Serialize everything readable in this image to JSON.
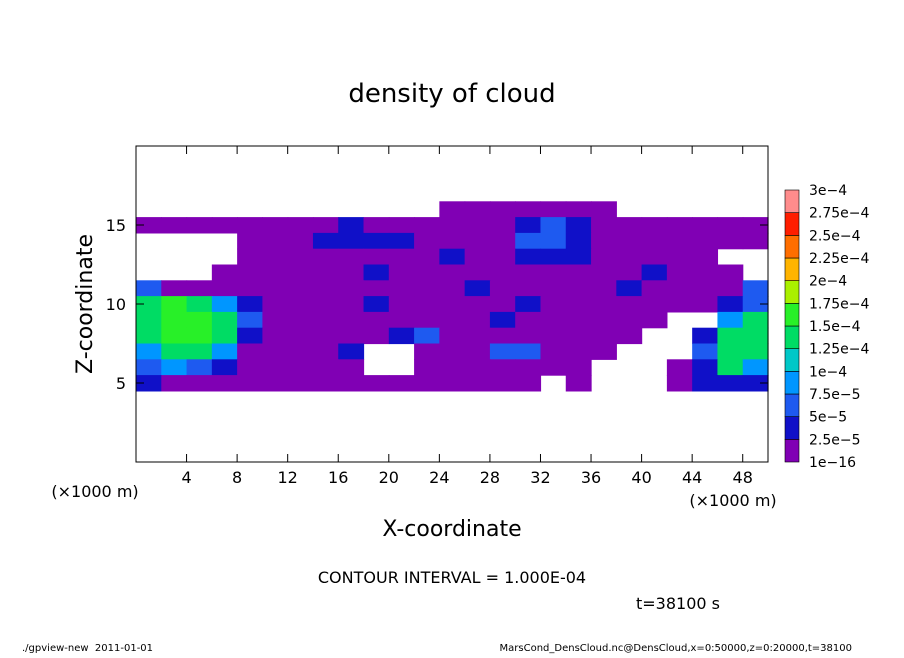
{
  "chart_data": {
    "type": "heatmap",
    "title": "density of cloud",
    "x_label": "X-coordinate",
    "y_label": "Z-coordinate",
    "x_unit": "(×1000 m)",
    "y_unit": "(×1000 m)",
    "annotation": "CONTOUR INTERVAL = 1.000E-04",
    "time_label": "t=38100 s",
    "footer_left": "./gpview-new  2011-01-01",
    "footer_right": "MarsCond_DensCloud.nc@DensCloud,x=0:50000,z=0:20000,t=38100",
    "xlim": [
      0,
      50
    ],
    "ylim": [
      0,
      20
    ],
    "xticks": [
      4,
      8,
      12,
      16,
      20,
      24,
      28,
      32,
      36,
      40,
      44,
      48
    ],
    "yticks": [
      5,
      10,
      15
    ],
    "x": [
      1,
      3,
      5,
      7,
      9,
      11,
      13,
      15,
      17,
      19,
      21,
      23,
      25,
      27,
      29,
      31,
      33,
      35,
      37,
      39,
      41,
      43,
      45,
      47,
      49
    ],
    "y": [
      16,
      15,
      14,
      13,
      12,
      11,
      10,
      9,
      8,
      7,
      6,
      5
    ],
    "values": [
      [
        null,
        null,
        null,
        null,
        null,
        null,
        null,
        null,
        null,
        null,
        null,
        null,
        1e-05,
        1e-05,
        1e-05,
        1e-05,
        1e-05,
        1e-05,
        1e-05,
        null,
        null,
        null,
        null,
        null,
        null
      ],
      [
        1e-05,
        1e-05,
        1e-05,
        1e-05,
        1e-05,
        1e-05,
        1e-05,
        1e-05,
        3e-05,
        1e-05,
        1e-05,
        1e-05,
        1e-05,
        1e-05,
        1e-05,
        3e-05,
        6e-05,
        3e-05,
        1e-05,
        1e-05,
        1e-05,
        1e-05,
        1e-05,
        1e-05,
        1e-05
      ],
      [
        null,
        null,
        null,
        null,
        1e-05,
        1e-05,
        1e-05,
        3e-05,
        3e-05,
        3e-05,
        3e-05,
        1e-05,
        1e-05,
        1e-05,
        1e-05,
        6e-05,
        6e-05,
        3e-05,
        1e-05,
        1e-05,
        1e-05,
        1e-05,
        1e-05,
        1e-05,
        1e-05
      ],
      [
        null,
        null,
        null,
        null,
        1e-05,
        1e-05,
        1e-05,
        1e-05,
        1e-05,
        1e-05,
        1e-05,
        1e-05,
        3e-05,
        1e-05,
        1e-05,
        3e-05,
        3e-05,
        3e-05,
        1e-05,
        1e-05,
        1e-05,
        1e-05,
        1e-05,
        null,
        null
      ],
      [
        null,
        null,
        null,
        1e-05,
        1e-05,
        1e-05,
        1e-05,
        1e-05,
        1e-05,
        3e-05,
        1e-05,
        1e-05,
        1e-05,
        1e-05,
        1e-05,
        1e-05,
        1e-05,
        1e-05,
        1e-05,
        1e-05,
        3e-05,
        1e-05,
        1e-05,
        1e-05,
        null
      ],
      [
        6e-05,
        1e-05,
        1e-05,
        1e-05,
        1e-05,
        1e-05,
        1e-05,
        1e-05,
        1e-05,
        1e-05,
        1e-05,
        1e-05,
        1e-05,
        3e-05,
        1e-05,
        1e-05,
        1e-05,
        1e-05,
        1e-05,
        3e-05,
        1e-05,
        1e-05,
        1e-05,
        1e-05,
        6e-05
      ],
      [
        0.00013,
        0.00016,
        0.00013,
        9e-05,
        3e-05,
        1e-05,
        1e-05,
        1e-05,
        1e-05,
        3e-05,
        1e-05,
        1e-05,
        1e-05,
        1e-05,
        1e-05,
        3e-05,
        1e-05,
        1e-05,
        1e-05,
        1e-05,
        1e-05,
        1e-05,
        1e-05,
        3e-05,
        6e-05
      ],
      [
        0.00013,
        0.00016,
        0.00016,
        0.00013,
        6e-05,
        1e-05,
        1e-05,
        1e-05,
        1e-05,
        1e-05,
        1e-05,
        1e-05,
        1e-05,
        1e-05,
        3e-05,
        1e-05,
        1e-05,
        1e-05,
        1e-05,
        1e-05,
        1e-05,
        null,
        null,
        9e-05,
        0.00013
      ],
      [
        0.00013,
        0.00016,
        0.00016,
        0.00013,
        3e-05,
        1e-05,
        1e-05,
        1e-05,
        1e-05,
        1e-05,
        3e-05,
        6e-05,
        1e-05,
        1e-05,
        1e-05,
        1e-05,
        1e-05,
        1e-05,
        1e-05,
        1e-05,
        null,
        null,
        3e-05,
        0.00013,
        0.00013
      ],
      [
        9e-05,
        0.00013,
        0.00013,
        9e-05,
        1e-05,
        1e-05,
        1e-05,
        1e-05,
        3e-05,
        null,
        null,
        1e-05,
        1e-05,
        1e-05,
        6e-05,
        6e-05,
        1e-05,
        1e-05,
        1e-05,
        null,
        null,
        null,
        6e-05,
        0.00013,
        0.00013
      ],
      [
        6e-05,
        9e-05,
        6e-05,
        3e-05,
        1e-05,
        1e-05,
        1e-05,
        1e-05,
        1e-05,
        null,
        null,
        1e-05,
        1e-05,
        1e-05,
        1e-05,
        1e-05,
        1e-05,
        1e-05,
        null,
        null,
        null,
        1e-05,
        3e-05,
        0.00013,
        9e-05
      ],
      [
        3e-05,
        1e-05,
        1e-05,
        1e-05,
        1e-05,
        1e-05,
        1e-05,
        1e-05,
        1e-05,
        1e-05,
        1e-05,
        1e-05,
        1e-05,
        1e-05,
        1e-05,
        1e-05,
        null,
        1e-05,
        null,
        null,
        null,
        1e-05,
        3e-05,
        3e-05,
        3e-05
      ]
    ],
    "colorbar": {
      "ticks": [
        {
          "value": 1e-16,
          "label": "1e−16"
        },
        {
          "value": 2.5e-05,
          "label": "2.5e−5"
        },
        {
          "value": 5e-05,
          "label": "5e−5"
        },
        {
          "value": 7.5e-05,
          "label": "7.5e−5"
        },
        {
          "value": 0.0001,
          "label": "1e−4"
        },
        {
          "value": 0.000125,
          "label": "1.25e−4"
        },
        {
          "value": 0.00015,
          "label": "1.5e−4"
        },
        {
          "value": 0.000175,
          "label": "1.75e−4"
        },
        {
          "value": 0.0002,
          "label": "2e−4"
        },
        {
          "value": 0.000225,
          "label": "2.25e−4"
        },
        {
          "value": 0.00025,
          "label": "2.5e−4"
        },
        {
          "value": 0.000275,
          "label": "2.75e−4"
        },
        {
          "value": 0.0003,
          "label": "3e−4"
        }
      ],
      "colors": [
        "#8000b4",
        "#1010c8",
        "#1e5af0",
        "#0096ff",
        "#00c8c8",
        "#00dc64",
        "#28f028",
        "#aaf000",
        "#ffb400",
        "#ff6e00",
        "#ff1e00",
        "#ff8c8c"
      ]
    }
  }
}
